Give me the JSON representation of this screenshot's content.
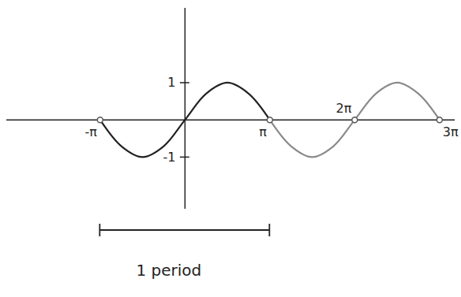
{
  "chart_data": {
    "type": "line",
    "x": [
      -3.14159,
      -2.35619,
      -1.5708,
      -0.7854,
      0,
      0.7854,
      1.5708,
      2.35619,
      3.14159,
      3.92699,
      4.71239,
      5.49779,
      6.28319,
      7.06858,
      7.85398,
      8.63938,
      9.42478
    ],
    "series": [
      {
        "color": "#222222",
        "values": [
          0,
          -0.707,
          -1,
          -0.707,
          0,
          0.707,
          1,
          0.707,
          0,
          null,
          null,
          null,
          null,
          null,
          null,
          null,
          null
        ]
      },
      {
        "color": "#8a8a8a",
        "values": [
          null,
          null,
          null,
          null,
          null,
          null,
          null,
          null,
          0,
          -0.707,
          -1,
          -0.707,
          0,
          0.707,
          1,
          0.707,
          0
        ]
      }
    ],
    "xlim": [
      -6.6,
      10.0
    ],
    "ylim": [
      -2.4,
      3.0
    ],
    "xticks": [
      {
        "value": -3.14159,
        "label": "-π"
      },
      {
        "value": 3.14159,
        "label": "π"
      },
      {
        "value": 6.28319,
        "label": "2π"
      },
      {
        "value": 9.42478,
        "label": "3π"
      }
    ],
    "yticks": [
      1,
      -1
    ],
    "annotations": [
      {
        "text": "1 period",
        "x_start": -3.14159,
        "x_end": 3.14159
      }
    ]
  }
}
